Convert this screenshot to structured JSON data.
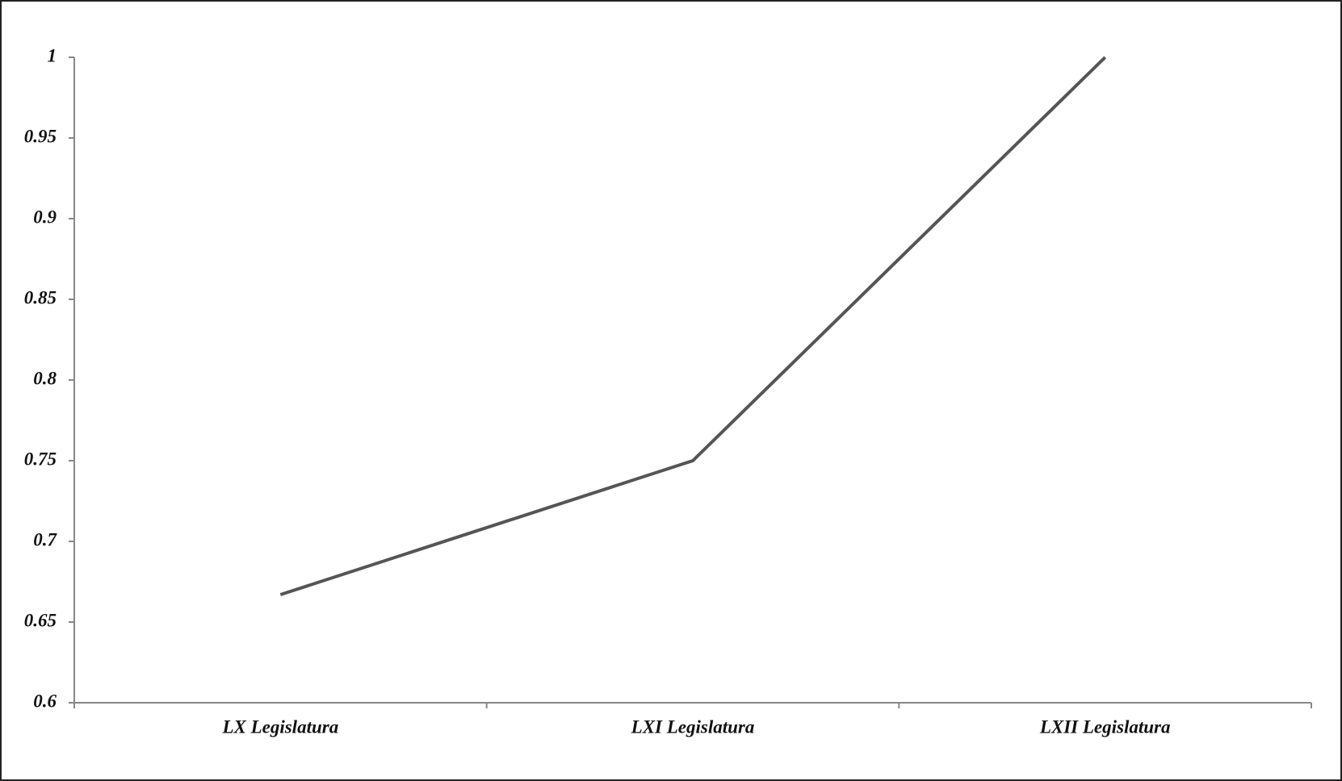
{
  "chart_data": {
    "type": "line",
    "categories": [
      "LX Legislatura",
      "LXI Legislatura",
      "LXII Legislatura"
    ],
    "values": [
      0.667,
      0.75,
      1
    ],
    "color": "#555555",
    "ylim": [
      0.6,
      1
    ],
    "yticks": [
      0.6,
      0.65,
      0.7,
      0.75,
      0.8,
      0.85,
      0.9,
      0.95,
      1
    ]
  }
}
